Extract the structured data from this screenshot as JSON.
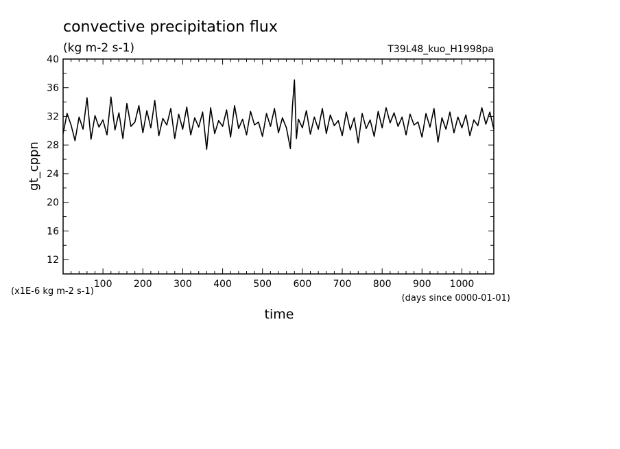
{
  "chart_data": {
    "type": "line",
    "title": "convective precipitation flux",
    "subtitle": "(kg m-2 s-1)",
    "experiment": "T39L48_kuo_H1998pa",
    "xlabel": "time",
    "x_units": "(days since 0000-01-01)",
    "ylabel": "gt_cppn",
    "y_scale_note": "(x1E-6 kg m-2 s-1)",
    "xlim": [
      0,
      1080
    ],
    "ylim": [
      10,
      40
    ],
    "x_ticks": [
      100,
      200,
      300,
      400,
      500,
      600,
      700,
      800,
      900,
      1000
    ],
    "y_ticks": [
      12,
      16,
      20,
      24,
      28,
      32,
      36,
      40
    ],
    "grid": false,
    "series": [
      {
        "x": [
          0,
          10,
          20,
          30,
          40,
          50,
          60,
          70,
          80,
          90,
          100,
          110,
          120,
          130,
          140,
          150,
          160,
          170,
          180,
          190,
          200,
          210,
          220,
          230,
          240,
          250,
          260,
          270,
          280,
          290,
          300,
          310,
          320,
          330,
          340,
          350,
          360,
          370,
          380,
          390,
          400,
          410,
          420,
          430,
          440,
          450,
          460,
          470,
          480,
          490,
          500,
          510,
          520,
          530,
          540,
          550,
          560,
          570,
          575,
          580,
          585,
          590,
          600,
          610,
          620,
          630,
          640,
          650,
          660,
          670,
          680,
          690,
          700,
          710,
          720,
          730,
          740,
          750,
          760,
          770,
          780,
          790,
          800,
          810,
          820,
          830,
          840,
          850,
          860,
          870,
          880,
          890,
          900,
          910,
          920,
          930,
          940,
          950,
          960,
          970,
          980,
          990,
          1000,
          1010,
          1020,
          1030,
          1040,
          1050,
          1060,
          1070,
          1080
        ],
        "values": [
          29.6,
          32.4,
          30.8,
          28.6,
          31.9,
          30.2,
          34.6,
          28.8,
          32.1,
          30.5,
          31.5,
          29.4,
          34.7,
          30.1,
          32.5,
          28.9,
          33.8,
          30.6,
          31.2,
          33.5,
          29.7,
          32.8,
          30.4,
          34.2,
          29.3,
          31.7,
          30.8,
          33.1,
          28.9,
          32.3,
          30.2,
          33.3,
          29.4,
          31.8,
          30.5,
          32.6,
          27.4,
          33.2,
          29.6,
          31.4,
          30.6,
          32.9,
          29.1,
          33.5,
          30.3,
          31.6,
          29.4,
          32.7,
          30.8,
          31.2,
          29.2,
          32.4,
          30.6,
          33.1,
          29.7,
          31.8,
          30.4,
          27.5,
          33.4,
          37.1,
          28.9,
          31.6,
          30.4,
          32.8,
          29.5,
          31.9,
          30.2,
          33.1,
          29.6,
          32.2,
          30.7,
          31.4,
          29.3,
          32.6,
          30.1,
          31.8,
          28.3,
          32.4,
          30.3,
          31.5,
          29.2,
          32.7,
          30.4,
          33.2,
          31.1,
          32.5,
          30.6,
          31.9,
          29.4,
          32.3,
          30.8,
          31.2,
          29.1,
          32.4,
          30.5,
          33.1,
          28.4,
          31.8,
          30.2,
          32.6,
          29.7,
          31.9,
          30.4,
          32.2,
          29.3,
          31.5,
          30.7,
          33.2,
          30.9,
          32.6,
          30.2
        ]
      }
    ]
  }
}
